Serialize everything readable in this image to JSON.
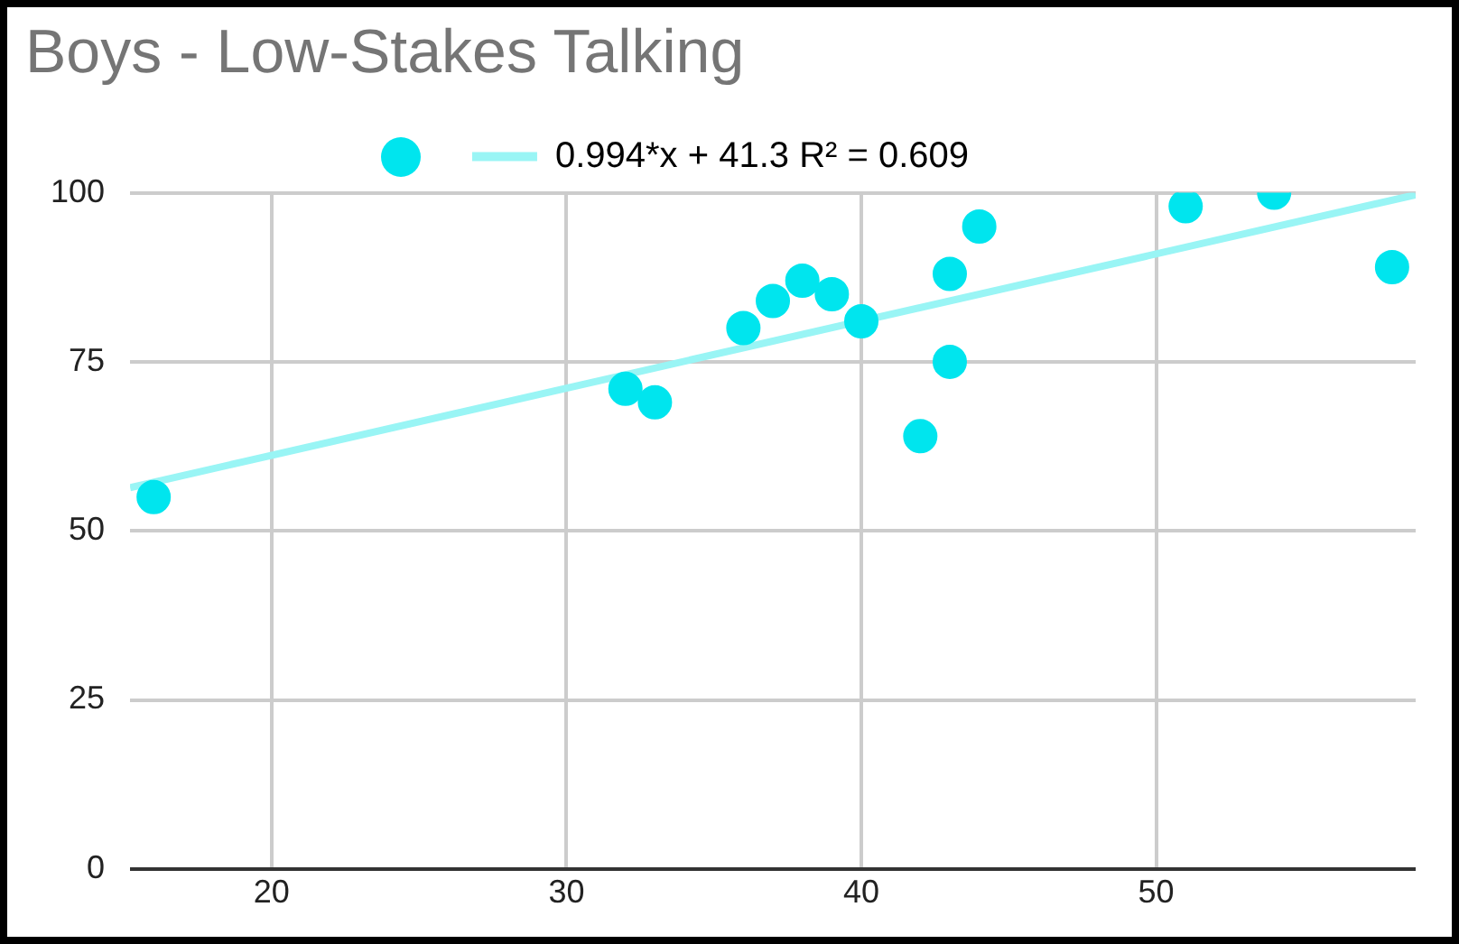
{
  "chart_data": {
    "type": "scatter",
    "title": "Boys - Low-Stakes Talking",
    "series": [
      {
        "color": "#00e5ee",
        "marker": "circle",
        "x": [
          16,
          32,
          33,
          36,
          37,
          38,
          39,
          40,
          42,
          43,
          43,
          44,
          51,
          54,
          58
        ],
        "values": [
          55,
          71,
          69,
          80,
          84,
          87,
          85,
          81,
          64,
          88,
          75,
          95,
          98,
          100,
          89
        ]
      },
      {
        "type": "line",
        "name": "0.994*x + 41.3 R² = 0.609",
        "color": "#99f5f5",
        "x": [
          15.2,
          58.8
        ],
        "values": [
          56.4,
          99.7
        ]
      }
    ],
    "xlim": [
      15.2,
      58.8
    ],
    "xticks": [
      20,
      30,
      40,
      50
    ],
    "ylim": [
      0,
      100
    ],
    "yticks": [
      0,
      25,
      50,
      75,
      100
    ],
    "grid": true,
    "legend": "top"
  }
}
